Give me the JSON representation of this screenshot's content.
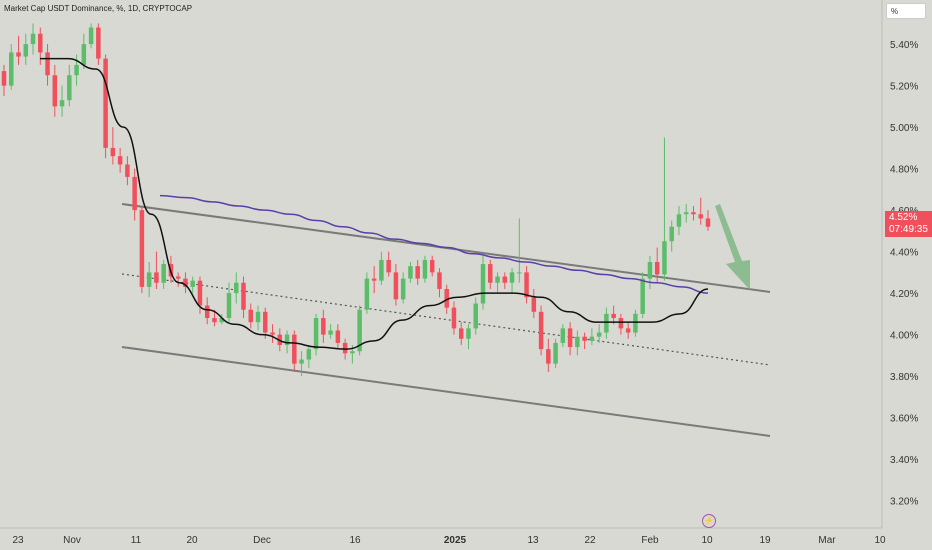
{
  "header": {
    "title": "Market Cap USDT Dominance, %, 1D, CRYPTOCAP",
    "scale_button": "%"
  },
  "price_tag": {
    "value": "4.52%",
    "countdown": "07:49:35"
  },
  "colors": {
    "up": "#5bbd6a",
    "down": "#f0505c",
    "ma_long": "#5b3fa8",
    "ma_short": "#111111",
    "channel": "#7a7a7a",
    "arrow": "#7fb685"
  },
  "chart_data": {
    "type": "candlestick",
    "ylim": [
      3.15,
      5.55
    ],
    "y_ticks": [
      "5.40%",
      "5.20%",
      "5.00%",
      "4.80%",
      "4.60%",
      "4.40%",
      "4.20%",
      "4.00%",
      "3.80%",
      "3.60%",
      "3.40%",
      "3.20%"
    ],
    "x_ticks": [
      "23",
      "Nov",
      "11",
      "20",
      "Dec",
      "16",
      "2025",
      "13",
      "22",
      "Feb",
      "10",
      "19",
      "Mar",
      "10"
    ],
    "bold_x_ticks": [
      "2025"
    ],
    "candles": [
      [
        5.27,
        5.3,
        5.15,
        5.2
      ],
      [
        5.2,
        5.4,
        5.18,
        5.36
      ],
      [
        5.36,
        5.44,
        5.3,
        5.34
      ],
      [
        5.34,
        5.45,
        5.3,
        5.4
      ],
      [
        5.4,
        5.5,
        5.35,
        5.45
      ],
      [
        5.45,
        5.48,
        5.3,
        5.36
      ],
      [
        5.36,
        5.4,
        5.2,
        5.25
      ],
      [
        5.25,
        5.3,
        5.05,
        5.1
      ],
      [
        5.1,
        5.2,
        5.05,
        5.13
      ],
      [
        5.13,
        5.3,
        5.1,
        5.25
      ],
      [
        5.25,
        5.35,
        5.2,
        5.3
      ],
      [
        5.3,
        5.45,
        5.28,
        5.4
      ],
      [
        5.4,
        5.5,
        5.38,
        5.48
      ],
      [
        5.48,
        5.5,
        5.3,
        5.33
      ],
      [
        5.33,
        5.35,
        4.85,
        4.9
      ],
      [
        4.9,
        5.0,
        4.82,
        4.86
      ],
      [
        4.86,
        4.9,
        4.78,
        4.82
      ],
      [
        4.82,
        4.86,
        4.72,
        4.76
      ],
      [
        4.76,
        4.8,
        4.55,
        4.6
      ],
      [
        4.6,
        4.62,
        4.2,
        4.23
      ],
      [
        4.23,
        4.35,
        4.18,
        4.3
      ],
      [
        4.3,
        4.4,
        4.22,
        4.25
      ],
      [
        4.25,
        4.36,
        4.22,
        4.34
      ],
      [
        4.34,
        4.38,
        4.25,
        4.28
      ],
      [
        4.28,
        4.3,
        4.23,
        4.27
      ],
      [
        4.27,
        4.3,
        4.2,
        4.23
      ],
      [
        4.23,
        4.28,
        4.2,
        4.26
      ],
      [
        4.26,
        4.28,
        4.1,
        4.14
      ],
      [
        4.14,
        4.18,
        4.05,
        4.08
      ],
      [
        4.08,
        4.12,
        4.04,
        4.06
      ],
      [
        4.06,
        4.1,
        4.05,
        4.08
      ],
      [
        4.08,
        4.25,
        4.06,
        4.2
      ],
      [
        4.2,
        4.3,
        4.15,
        4.25
      ],
      [
        4.25,
        4.28,
        4.08,
        4.12
      ],
      [
        4.12,
        4.15,
        4.03,
        4.06
      ],
      [
        4.06,
        4.14,
        4.02,
        4.11
      ],
      [
        4.11,
        4.13,
        3.98,
        4.01
      ],
      [
        4.01,
        4.05,
        3.96,
        4.0
      ],
      [
        4.0,
        4.03,
        3.92,
        3.95
      ],
      [
        3.95,
        4.02,
        3.91,
        4.0
      ],
      [
        4.0,
        4.02,
        3.82,
        3.86
      ],
      [
        3.86,
        3.92,
        3.8,
        3.88
      ],
      [
        3.88,
        3.95,
        3.84,
        3.93
      ],
      [
        3.93,
        4.1,
        3.9,
        4.08
      ],
      [
        4.08,
        4.12,
        3.96,
        4.0
      ],
      [
        4.0,
        4.05,
        3.98,
        4.02
      ],
      [
        4.02,
        4.05,
        3.93,
        3.96
      ],
      [
        3.96,
        3.98,
        3.88,
        3.91
      ],
      [
        3.91,
        3.95,
        3.86,
        3.92
      ],
      [
        3.92,
        4.14,
        3.9,
        4.12
      ],
      [
        4.12,
        4.3,
        4.1,
        4.27
      ],
      [
        4.27,
        4.33,
        4.2,
        4.26
      ],
      [
        4.26,
        4.4,
        4.24,
        4.36
      ],
      [
        4.36,
        4.4,
        4.28,
        4.3
      ],
      [
        4.3,
        4.34,
        4.14,
        4.17
      ],
      [
        4.17,
        4.3,
        4.15,
        4.27
      ],
      [
        4.27,
        4.35,
        4.25,
        4.33
      ],
      [
        4.33,
        4.36,
        4.24,
        4.27
      ],
      [
        4.27,
        4.38,
        4.25,
        4.36
      ],
      [
        4.36,
        4.38,
        4.28,
        4.3
      ],
      [
        4.3,
        4.32,
        4.18,
        4.22
      ],
      [
        4.22,
        4.24,
        4.1,
        4.13
      ],
      [
        4.13,
        4.16,
        4.0,
        4.03
      ],
      [
        4.03,
        4.06,
        3.95,
        3.98
      ],
      [
        3.98,
        4.05,
        3.93,
        4.03
      ],
      [
        4.03,
        4.18,
        4.0,
        4.15
      ],
      [
        4.15,
        4.38,
        4.12,
        4.34
      ],
      [
        4.34,
        4.36,
        4.22,
        4.25
      ],
      [
        4.25,
        4.3,
        4.2,
        4.28
      ],
      [
        4.28,
        4.3,
        4.22,
        4.25
      ],
      [
        4.25,
        4.32,
        4.2,
        4.3
      ],
      [
        4.3,
        4.56,
        4.25,
        4.3
      ],
      [
        4.3,
        4.33,
        4.15,
        4.18
      ],
      [
        4.18,
        4.22,
        4.08,
        4.11
      ],
      [
        4.11,
        4.14,
        3.9,
        3.93
      ],
      [
        3.93,
        3.98,
        3.82,
        3.86
      ],
      [
        3.86,
        3.98,
        3.84,
        3.96
      ],
      [
        3.96,
        4.05,
        3.94,
        4.03
      ],
      [
        4.03,
        4.06,
        3.9,
        3.94
      ],
      [
        3.94,
        4.02,
        3.9,
        3.99
      ],
      [
        3.99,
        4.01,
        3.93,
        3.97
      ],
      [
        3.97,
        4.03,
        3.95,
        3.99
      ],
      [
        3.99,
        4.05,
        3.96,
        4.01
      ],
      [
        4.01,
        4.13,
        3.98,
        4.1
      ],
      [
        4.1,
        4.14,
        4.05,
        4.08
      ],
      [
        4.08,
        4.1,
        4.0,
        4.03
      ],
      [
        4.03,
        4.06,
        3.98,
        4.01
      ],
      [
        4.01,
        4.12,
        3.99,
        4.1
      ],
      [
        4.1,
        4.3,
        4.08,
        4.27
      ],
      [
        4.27,
        4.38,
        4.22,
        4.35
      ],
      [
        4.35,
        4.42,
        4.25,
        4.29
      ],
      [
        4.29,
        4.95,
        4.26,
        4.45
      ],
      [
        4.45,
        4.55,
        4.4,
        4.52
      ],
      [
        4.52,
        4.62,
        4.48,
        4.58
      ],
      [
        4.58,
        4.63,
        4.54,
        4.59
      ],
      [
        4.59,
        4.62,
        4.55,
        4.58
      ],
      [
        4.58,
        4.66,
        4.53,
        4.56
      ],
      [
        4.56,
        4.6,
        4.5,
        4.52
      ]
    ],
    "series": [
      {
        "values": [
          4.67,
          4.66,
          4.64,
          4.62,
          4.6,
          4.58,
          4.55,
          4.52,
          4.49,
          4.46,
          4.44,
          4.42,
          4.39,
          4.37,
          4.35,
          4.33,
          4.31,
          4.29,
          4.27,
          4.25,
          4.23,
          4.2
        ]
      },
      {
        "values": [
          5.33,
          5.33,
          5.28,
          5.0,
          4.58,
          4.25,
          4.12,
          4.05,
          4.0,
          3.96,
          3.94,
          3.93,
          3.97,
          4.07,
          4.14,
          4.18,
          4.2,
          4.2,
          4.18,
          4.11,
          4.06,
          4.06,
          4.06,
          4.1,
          4.22
        ]
      }
    ]
  }
}
